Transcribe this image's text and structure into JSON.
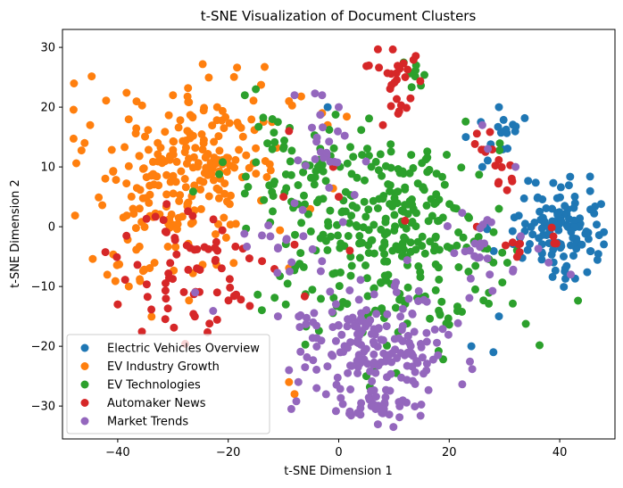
{
  "chart_data": {
    "type": "scatter",
    "title": "t-SNE Visualization of Document Clusters",
    "xlabel": "t-SNE Dimension 1",
    "ylabel": "t-SNE Dimension 2",
    "xlim": [
      -50,
      50
    ],
    "ylim": [
      -35.5,
      33
    ],
    "xticks": [
      -40,
      -20,
      0,
      20,
      40
    ],
    "yticks": [
      -30,
      -20,
      -10,
      0,
      10,
      20,
      30
    ],
    "grid": false,
    "legend_position": "lower-left",
    "series": [
      {
        "name": "Electric Vehicles Overview",
        "color": "#1f77b4",
        "clusters": [
          {
            "cx": 40,
            "cy": 0,
            "sx": 4.5,
            "sy": 3.8,
            "n": 120
          },
          {
            "cx": 31,
            "cy": 16,
            "sx": 2.2,
            "sy": 2.5,
            "n": 14
          }
        ],
        "points": [
          [
            29,
            20
          ],
          [
            -2,
            20
          ],
          [
            23,
            15
          ],
          [
            30,
            16
          ],
          [
            29,
            -15
          ],
          [
            24,
            -20
          ],
          [
            28,
            -21
          ],
          [
            26,
            10
          ],
          [
            44,
            -3
          ],
          [
            41,
            -7
          ]
        ]
      },
      {
        "name": "EV Industry Growth",
        "color": "#ff7f0e",
        "clusters": [
          {
            "cx": -28,
            "cy": 10,
            "sx": 9.5,
            "sy": 6.8,
            "n": 230
          },
          {
            "cx": -36,
            "cy": -6,
            "sx": 4,
            "sy": 4,
            "n": 25
          }
        ],
        "points": [
          [
            -45,
            17
          ],
          [
            -46,
            14
          ],
          [
            -30,
            22
          ],
          [
            -22,
            20
          ],
          [
            -9,
            21
          ],
          [
            -3,
            19
          ],
          [
            -2,
            17
          ],
          [
            -8,
            -28
          ],
          [
            -9,
            -26
          ],
          [
            -40,
            -13
          ],
          [
            -38,
            -10
          ]
        ]
      },
      {
        "name": "EV Technologies",
        "color": "#2ca02c",
        "clusters": [
          {
            "cx": 10,
            "cy": -2,
            "sx": 9.5,
            "sy": 8.5,
            "n": 310
          },
          {
            "cx": -10,
            "cy": 8,
            "sx": 5,
            "sy": 5.5,
            "n": 50
          },
          {
            "cx": 13,
            "cy": 25.5,
            "sx": 1.2,
            "sy": 1.5,
            "n": 6
          }
        ],
        "points": [
          [
            -17,
            22
          ],
          [
            -12,
            18
          ],
          [
            -15,
            23
          ],
          [
            29,
            3
          ],
          [
            28,
            -6
          ],
          [
            5,
            -25
          ],
          [
            14,
            27
          ]
        ]
      },
      {
        "name": "Automaker News",
        "color": "#d62728",
        "clusters": [
          {
            "cx": -27,
            "cy": -8,
            "sx": 7,
            "sy": 5,
            "n": 70
          },
          {
            "cx": 10,
            "cy": 26,
            "sx": 2.5,
            "sy": 2.5,
            "n": 22
          },
          {
            "cx": 28,
            "cy": 10,
            "sx": 2.5,
            "sy": 3,
            "n": 16
          },
          {
            "cx": 35,
            "cy": -3,
            "sx": 2.5,
            "sy": 1.2,
            "n": 10
          },
          {
            "cx": 11,
            "cy": 20,
            "sx": 1.2,
            "sy": 0.8,
            "n": 5
          }
        ],
        "points": [
          [
            -40,
            -13
          ],
          [
            -22,
            -11
          ],
          [
            -9,
            16
          ],
          [
            -10,
            5
          ],
          [
            -8,
            -3
          ],
          [
            0,
            5
          ],
          [
            2,
            -4
          ],
          [
            12,
            1
          ],
          [
            25,
            0
          ],
          [
            8,
            17
          ],
          [
            -1,
            10
          ]
        ]
      },
      {
        "name": "Market Trends",
        "color": "#9467bd",
        "clusters": [
          {
            "cx": 6,
            "cy": -20,
            "sx": 7.5,
            "sy": 5,
            "n": 180
          },
          {
            "cx": 8,
            "cy": -30,
            "sx": 4,
            "sy": 1.5,
            "n": 35
          },
          {
            "cx": -3,
            "cy": 13,
            "sx": 3,
            "sy": 4,
            "n": 22
          },
          {
            "cx": 25,
            "cy": -5,
            "sx": 3,
            "sy": 4,
            "n": 25
          },
          {
            "cx": -9,
            "cy": -3,
            "sx": 4,
            "sy": 4,
            "n": 18
          }
        ],
        "points": [
          [
            -26,
            -11
          ],
          [
            -8,
            22
          ],
          [
            -3,
            22
          ],
          [
            0,
            20
          ],
          [
            26,
            17
          ],
          [
            27,
            13
          ],
          [
            32,
            10
          ],
          [
            38,
            -6
          ],
          [
            42,
            -8
          ],
          [
            -11,
            -15
          ],
          [
            -9,
            -24
          ],
          [
            -4,
            -27
          ]
        ]
      }
    ]
  }
}
